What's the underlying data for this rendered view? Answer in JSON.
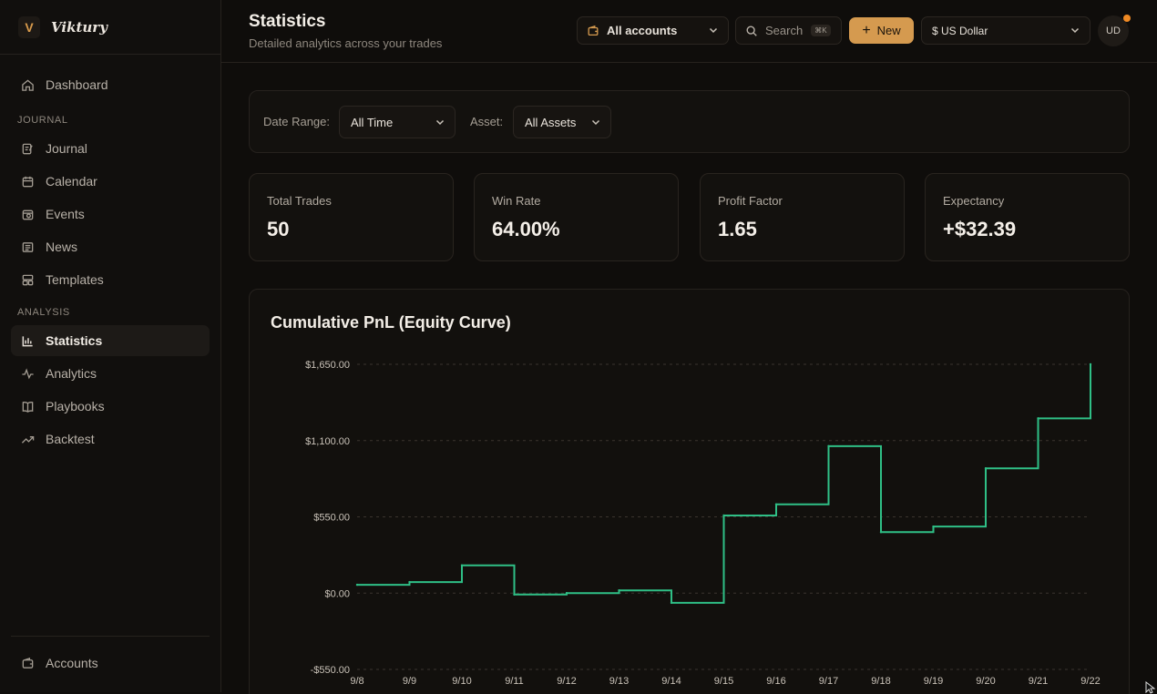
{
  "brand": {
    "logo_letter": "V",
    "name": "Viktury",
    "accent": "#d59a4f"
  },
  "sidebar": {
    "top_items": [
      {
        "label": "Dashboard",
        "icon": "home-icon"
      }
    ],
    "sections": [
      {
        "title": "JOURNAL",
        "items": [
          {
            "label": "Journal",
            "icon": "journal-icon"
          },
          {
            "label": "Calendar",
            "icon": "calendar-icon"
          },
          {
            "label": "Events",
            "icon": "events-icon"
          },
          {
            "label": "News",
            "icon": "news-icon"
          },
          {
            "label": "Templates",
            "icon": "templates-icon"
          }
        ]
      },
      {
        "title": "ANALYSIS",
        "items": [
          {
            "label": "Statistics",
            "icon": "bar-chart-icon",
            "active": true
          },
          {
            "label": "Analytics",
            "icon": "pulse-icon"
          },
          {
            "label": "Playbooks",
            "icon": "book-icon"
          },
          {
            "label": "Backtest",
            "icon": "trend-up-icon"
          }
        ]
      }
    ],
    "bottom_item": {
      "label": "Accounts",
      "icon": "wallet-icon"
    }
  },
  "header": {
    "title": "Statistics",
    "subtitle": "Detailed analytics across your trades",
    "accounts_select": "All accounts",
    "search_placeholder": "Search",
    "search_shortcut": "⌘K",
    "new_button": "New",
    "currency_select": "$ US Dollar",
    "avatar_initials": "UD"
  },
  "filters": {
    "date_range_label": "Date Range:",
    "date_range_value": "All Time",
    "asset_label": "Asset:",
    "asset_value": "All Assets"
  },
  "stats": [
    {
      "label": "Total Trades",
      "value": "50"
    },
    {
      "label": "Win Rate",
      "value": "64.00%"
    },
    {
      "label": "Profit Factor",
      "value": "1.65"
    },
    {
      "label": "Expectancy",
      "value": "+$32.39"
    }
  ],
  "chart_title": "Cumulative PnL (Equity Curve)",
  "chart_data": {
    "type": "line",
    "step": true,
    "title": "Cumulative PnL (Equity Curve)",
    "xlabel": "",
    "ylabel": "",
    "categories": [
      "9/8",
      "9/9",
      "9/10",
      "9/11",
      "9/12",
      "9/13",
      "9/14",
      "9/15",
      "9/16",
      "9/17",
      "9/18",
      "9/19",
      "9/20",
      "9/21",
      "9/22"
    ],
    "yticks": [
      -550,
      0,
      550,
      1100,
      1650
    ],
    "ytick_labels": [
      "-$550.00",
      "$0.00",
      "$550.00",
      "$1,100.00",
      "$1,650.00"
    ],
    "ylim": [
      -550,
      1650
    ],
    "series": [
      {
        "values": [
          60,
          80,
          200,
          -10,
          0,
          20,
          -70,
          560,
          640,
          1060,
          440,
          480,
          900,
          1260,
          1650
        ],
        "color": "#2fbf86"
      }
    ],
    "grid": true
  }
}
